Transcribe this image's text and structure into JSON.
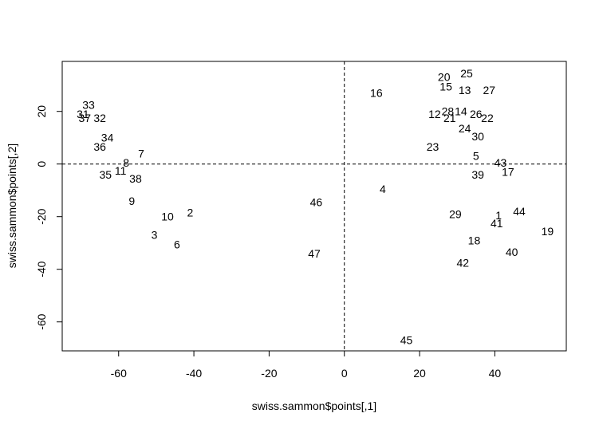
{
  "chart_data": {
    "type": "scatter",
    "xlabel": "swiss.sammon$points[,1]",
    "ylabel": "swiss.sammon$points[,2]",
    "xlim": [
      -75,
      59
    ],
    "ylim": [
      -71,
      39
    ],
    "x_ticks": [
      -60,
      -40,
      -20,
      0,
      20,
      40
    ],
    "y_ticks": [
      -60,
      -40,
      -20,
      0,
      20
    ],
    "x_tick_labels": [
      "-60",
      "-40",
      "-20",
      "0",
      "20",
      "40"
    ],
    "y_tick_labels": [
      "-60",
      "-40",
      "-20",
      "0",
      "20"
    ],
    "reference_lines": {
      "vertical_x": 0,
      "horizontal_y": 0,
      "style": "dashed"
    },
    "grid": false,
    "points": [
      {
        "label": "1",
        "x": 41.0,
        "y": -19.5
      },
      {
        "label": "2",
        "x": -41.0,
        "y": -18.5
      },
      {
        "label": "3",
        "x": -50.5,
        "y": -27.0
      },
      {
        "label": "4",
        "x": 10.2,
        "y": -9.5
      },
      {
        "label": "5",
        "x": 35.0,
        "y": 3.0
      },
      {
        "label": "6",
        "x": -44.5,
        "y": -30.5
      },
      {
        "label": "7",
        "x": -54.0,
        "y": 4.0
      },
      {
        "label": "8",
        "x": -58.0,
        "y": 0.5
      },
      {
        "label": "9",
        "x": -56.5,
        "y": -14.0
      },
      {
        "label": "10",
        "x": -47.0,
        "y": -20.0
      },
      {
        "label": "11",
        "x": -59.5,
        "y": -2.5
      },
      {
        "label": "12",
        "x": 24.0,
        "y": 19.0
      },
      {
        "label": "13",
        "x": 32.0,
        "y": 28.0
      },
      {
        "label": "14",
        "x": 31.0,
        "y": 20.0
      },
      {
        "label": "15",
        "x": 27.0,
        "y": 29.5
      },
      {
        "label": "16",
        "x": 8.5,
        "y": 27.0
      },
      {
        "label": "17",
        "x": 43.5,
        "y": -3.0
      },
      {
        "label": "18",
        "x": 34.5,
        "y": -29.0
      },
      {
        "label": "19",
        "x": 54.0,
        "y": -25.5
      },
      {
        "label": "20",
        "x": 26.5,
        "y": 33.0
      },
      {
        "label": "21",
        "x": 28.0,
        "y": 17.5
      },
      {
        "label": "22",
        "x": 38.0,
        "y": 17.5
      },
      {
        "label": "23",
        "x": 23.5,
        "y": 6.5
      },
      {
        "label": "24",
        "x": 32.0,
        "y": 13.5
      },
      {
        "label": "25",
        "x": 32.5,
        "y": 34.5
      },
      {
        "label": "26",
        "x": 35.0,
        "y": 19.0
      },
      {
        "label": "27",
        "x": 38.5,
        "y": 28.0
      },
      {
        "label": "28",
        "x": 27.5,
        "y": 20.0
      },
      {
        "label": "29",
        "x": 29.5,
        "y": -19.0
      },
      {
        "label": "30",
        "x": 35.5,
        "y": 10.5
      },
      {
        "label": "31",
        "x": -69.5,
        "y": 19.0
      },
      {
        "label": "32",
        "x": -65.0,
        "y": 17.5
      },
      {
        "label": "33",
        "x": -68.0,
        "y": 22.5
      },
      {
        "label": "34",
        "x": -63.0,
        "y": 10.0
      },
      {
        "label": "35",
        "x": -63.5,
        "y": -4.0
      },
      {
        "label": "36",
        "x": -65.0,
        "y": 6.5
      },
      {
        "label": "37",
        "x": -69.0,
        "y": 17.5
      },
      {
        "label": "38",
        "x": -55.5,
        "y": -5.5
      },
      {
        "label": "39",
        "x": 35.5,
        "y": -4.0
      },
      {
        "label": "40",
        "x": 44.5,
        "y": -33.5
      },
      {
        "label": "41",
        "x": 40.5,
        "y": -22.5
      },
      {
        "label": "42",
        "x": 31.5,
        "y": -37.5
      },
      {
        "label": "43",
        "x": 41.5,
        "y": 0.5
      },
      {
        "label": "44",
        "x": 46.5,
        "y": -18.0
      },
      {
        "label": "45",
        "x": 16.5,
        "y": -67.0
      },
      {
        "label": "46",
        "x": -7.5,
        "y": -14.5
      },
      {
        "label": "47",
        "x": -8.0,
        "y": -34.0
      }
    ]
  }
}
